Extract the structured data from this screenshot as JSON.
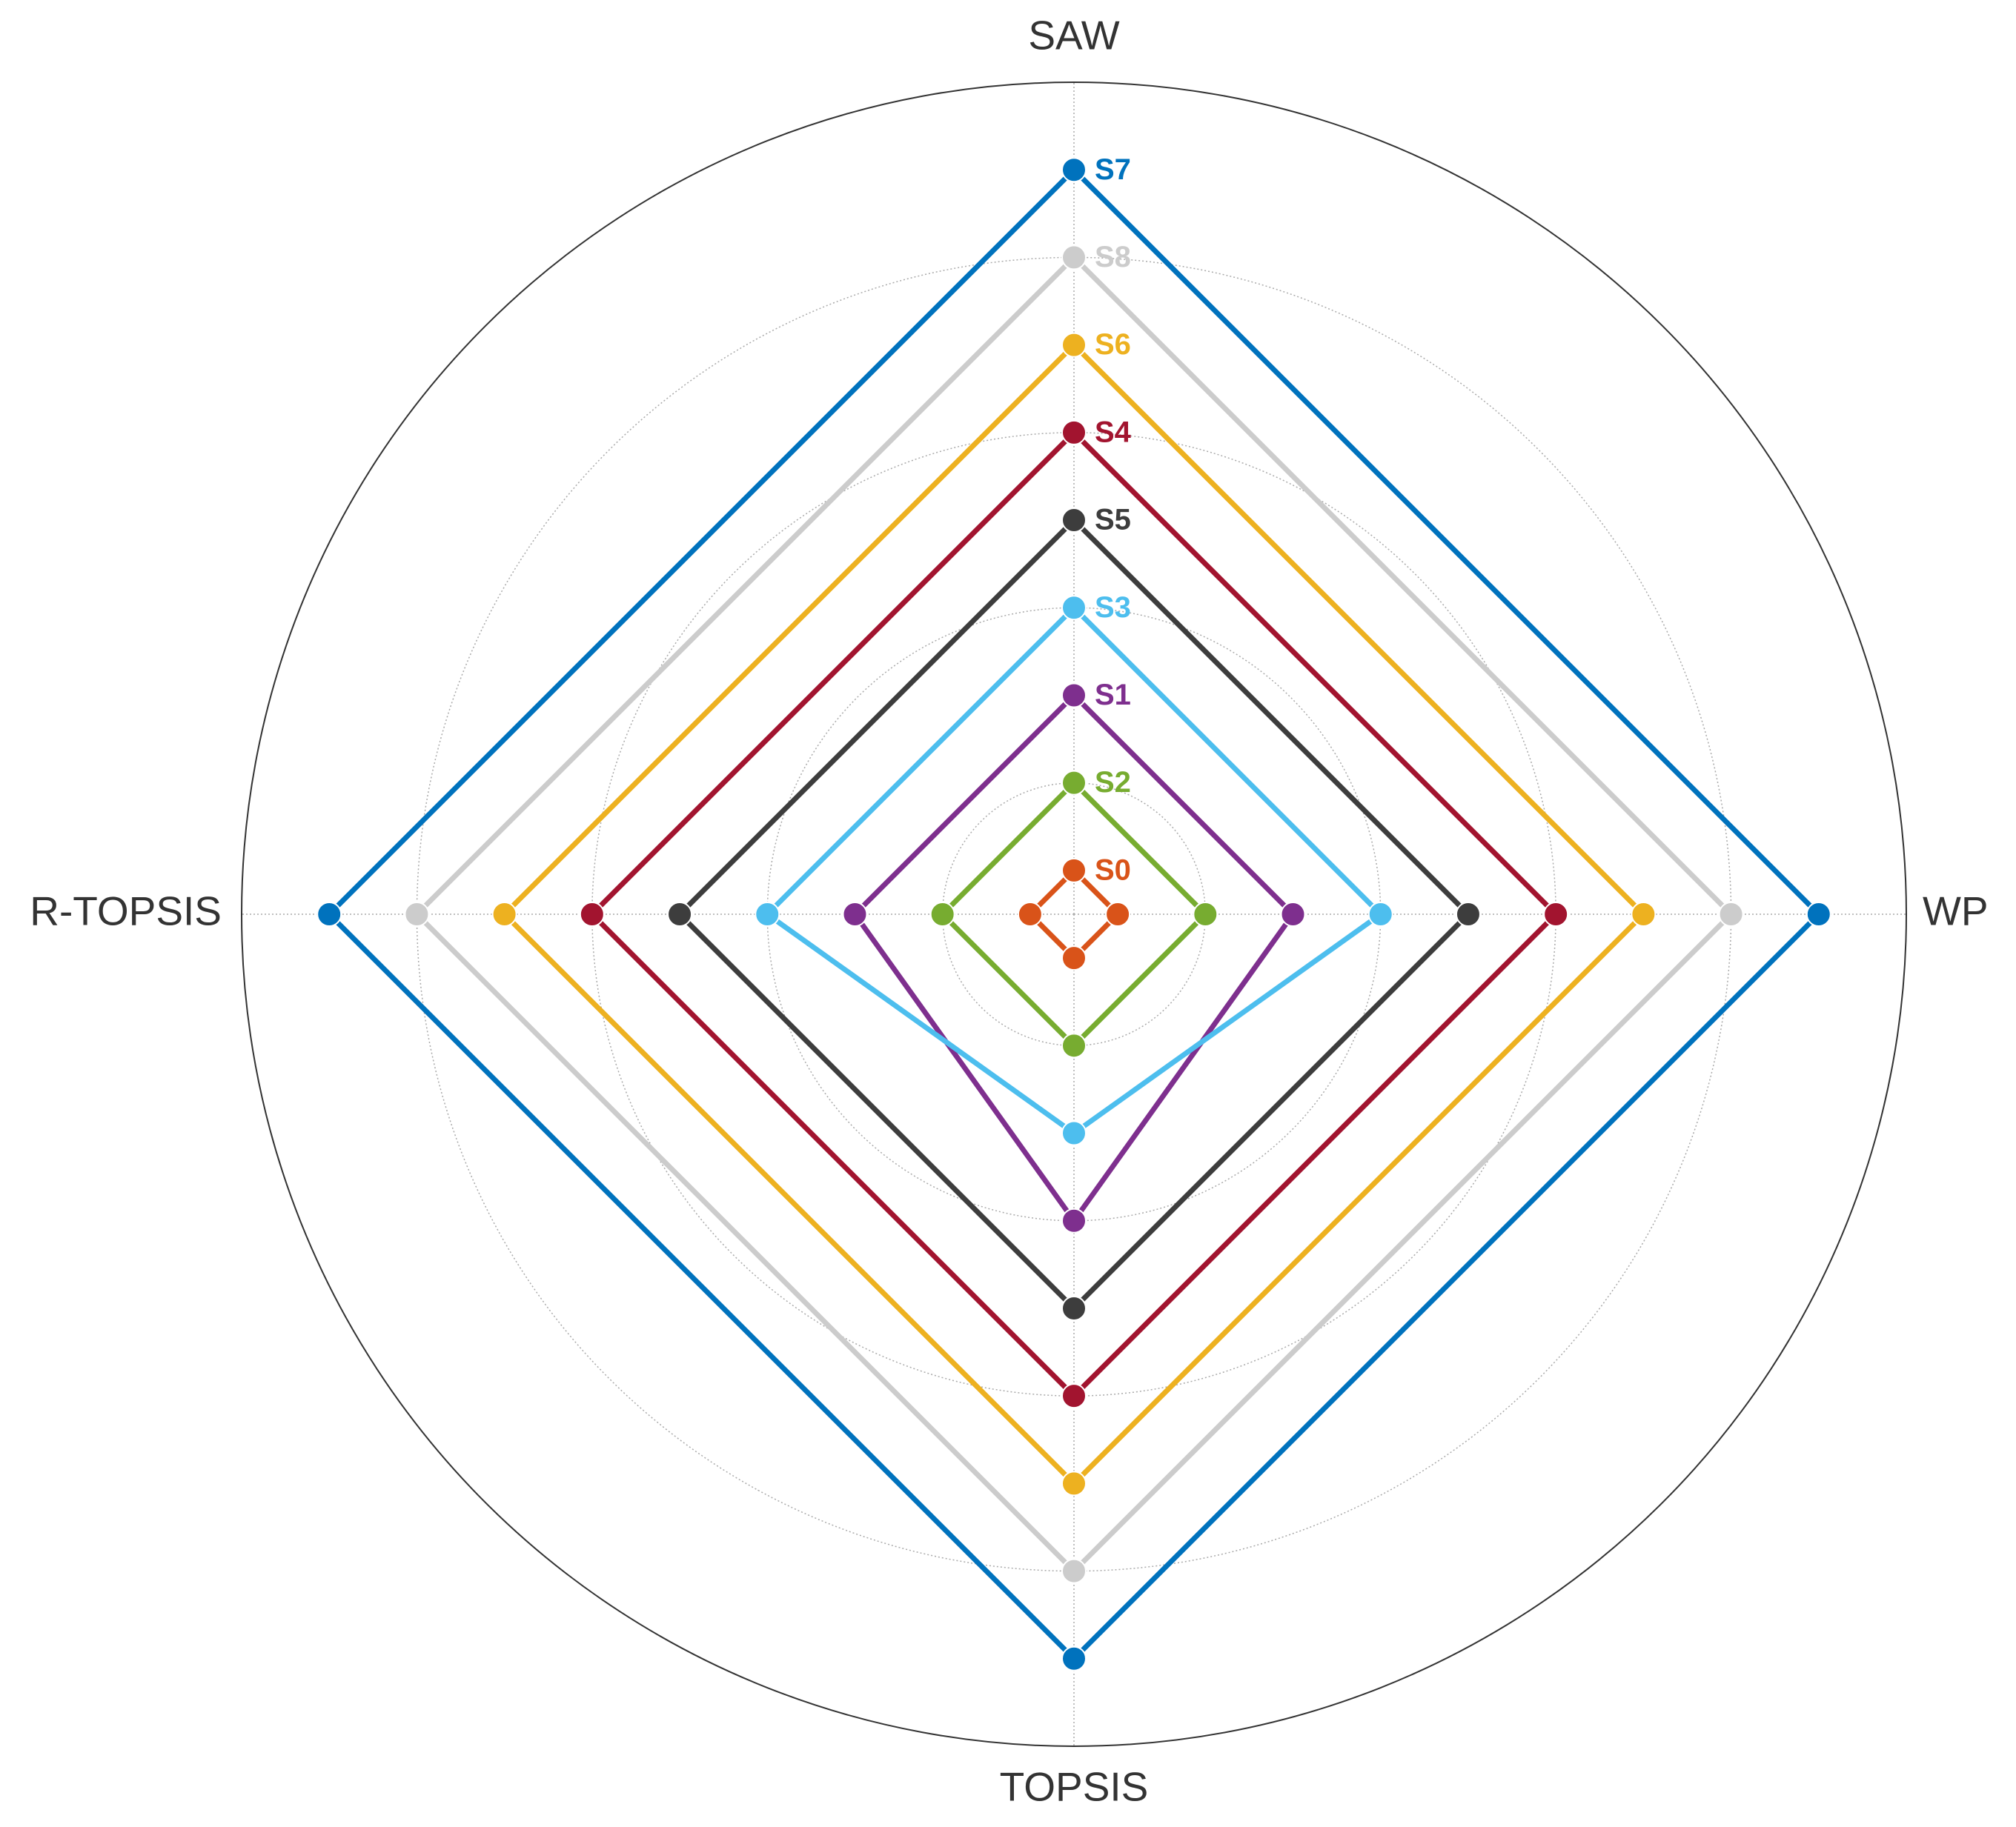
{
  "chart_data": {
    "type": "radar",
    "axes": [
      "SAW",
      "WP",
      "TOPSIS",
      "R-TOPSIS"
    ],
    "rlim": [
      0.5,
      10
    ],
    "rticks": [
      2,
      4,
      6,
      8
    ],
    "grid": true,
    "series": [
      {
        "name": "S0",
        "color": "#d95319",
        "values": [
          1,
          1,
          1,
          1
        ]
      },
      {
        "name": "S1",
        "color": "#7e2f8e",
        "values": [
          3,
          3,
          4,
          3
        ]
      },
      {
        "name": "S2",
        "color": "#77ac30",
        "values": [
          2,
          2,
          2,
          2
        ]
      },
      {
        "name": "S3",
        "color": "#4dbeee",
        "values": [
          4,
          4,
          3,
          4
        ]
      },
      {
        "name": "S4",
        "color": "#a2142f",
        "values": [
          6,
          6,
          6,
          6
        ]
      },
      {
        "name": "S5",
        "color": "#3d3d3d",
        "values": [
          5,
          5,
          5,
          5
        ]
      },
      {
        "name": "S6",
        "color": "#edb120",
        "values": [
          7,
          7,
          7,
          7
        ]
      },
      {
        "name": "S7",
        "color": "#0072bd",
        "values": [
          9,
          9,
          9,
          9
        ]
      },
      {
        "name": "S8",
        "color": "#cccccc",
        "values": [
          8,
          8,
          8,
          8
        ]
      }
    ]
  }
}
